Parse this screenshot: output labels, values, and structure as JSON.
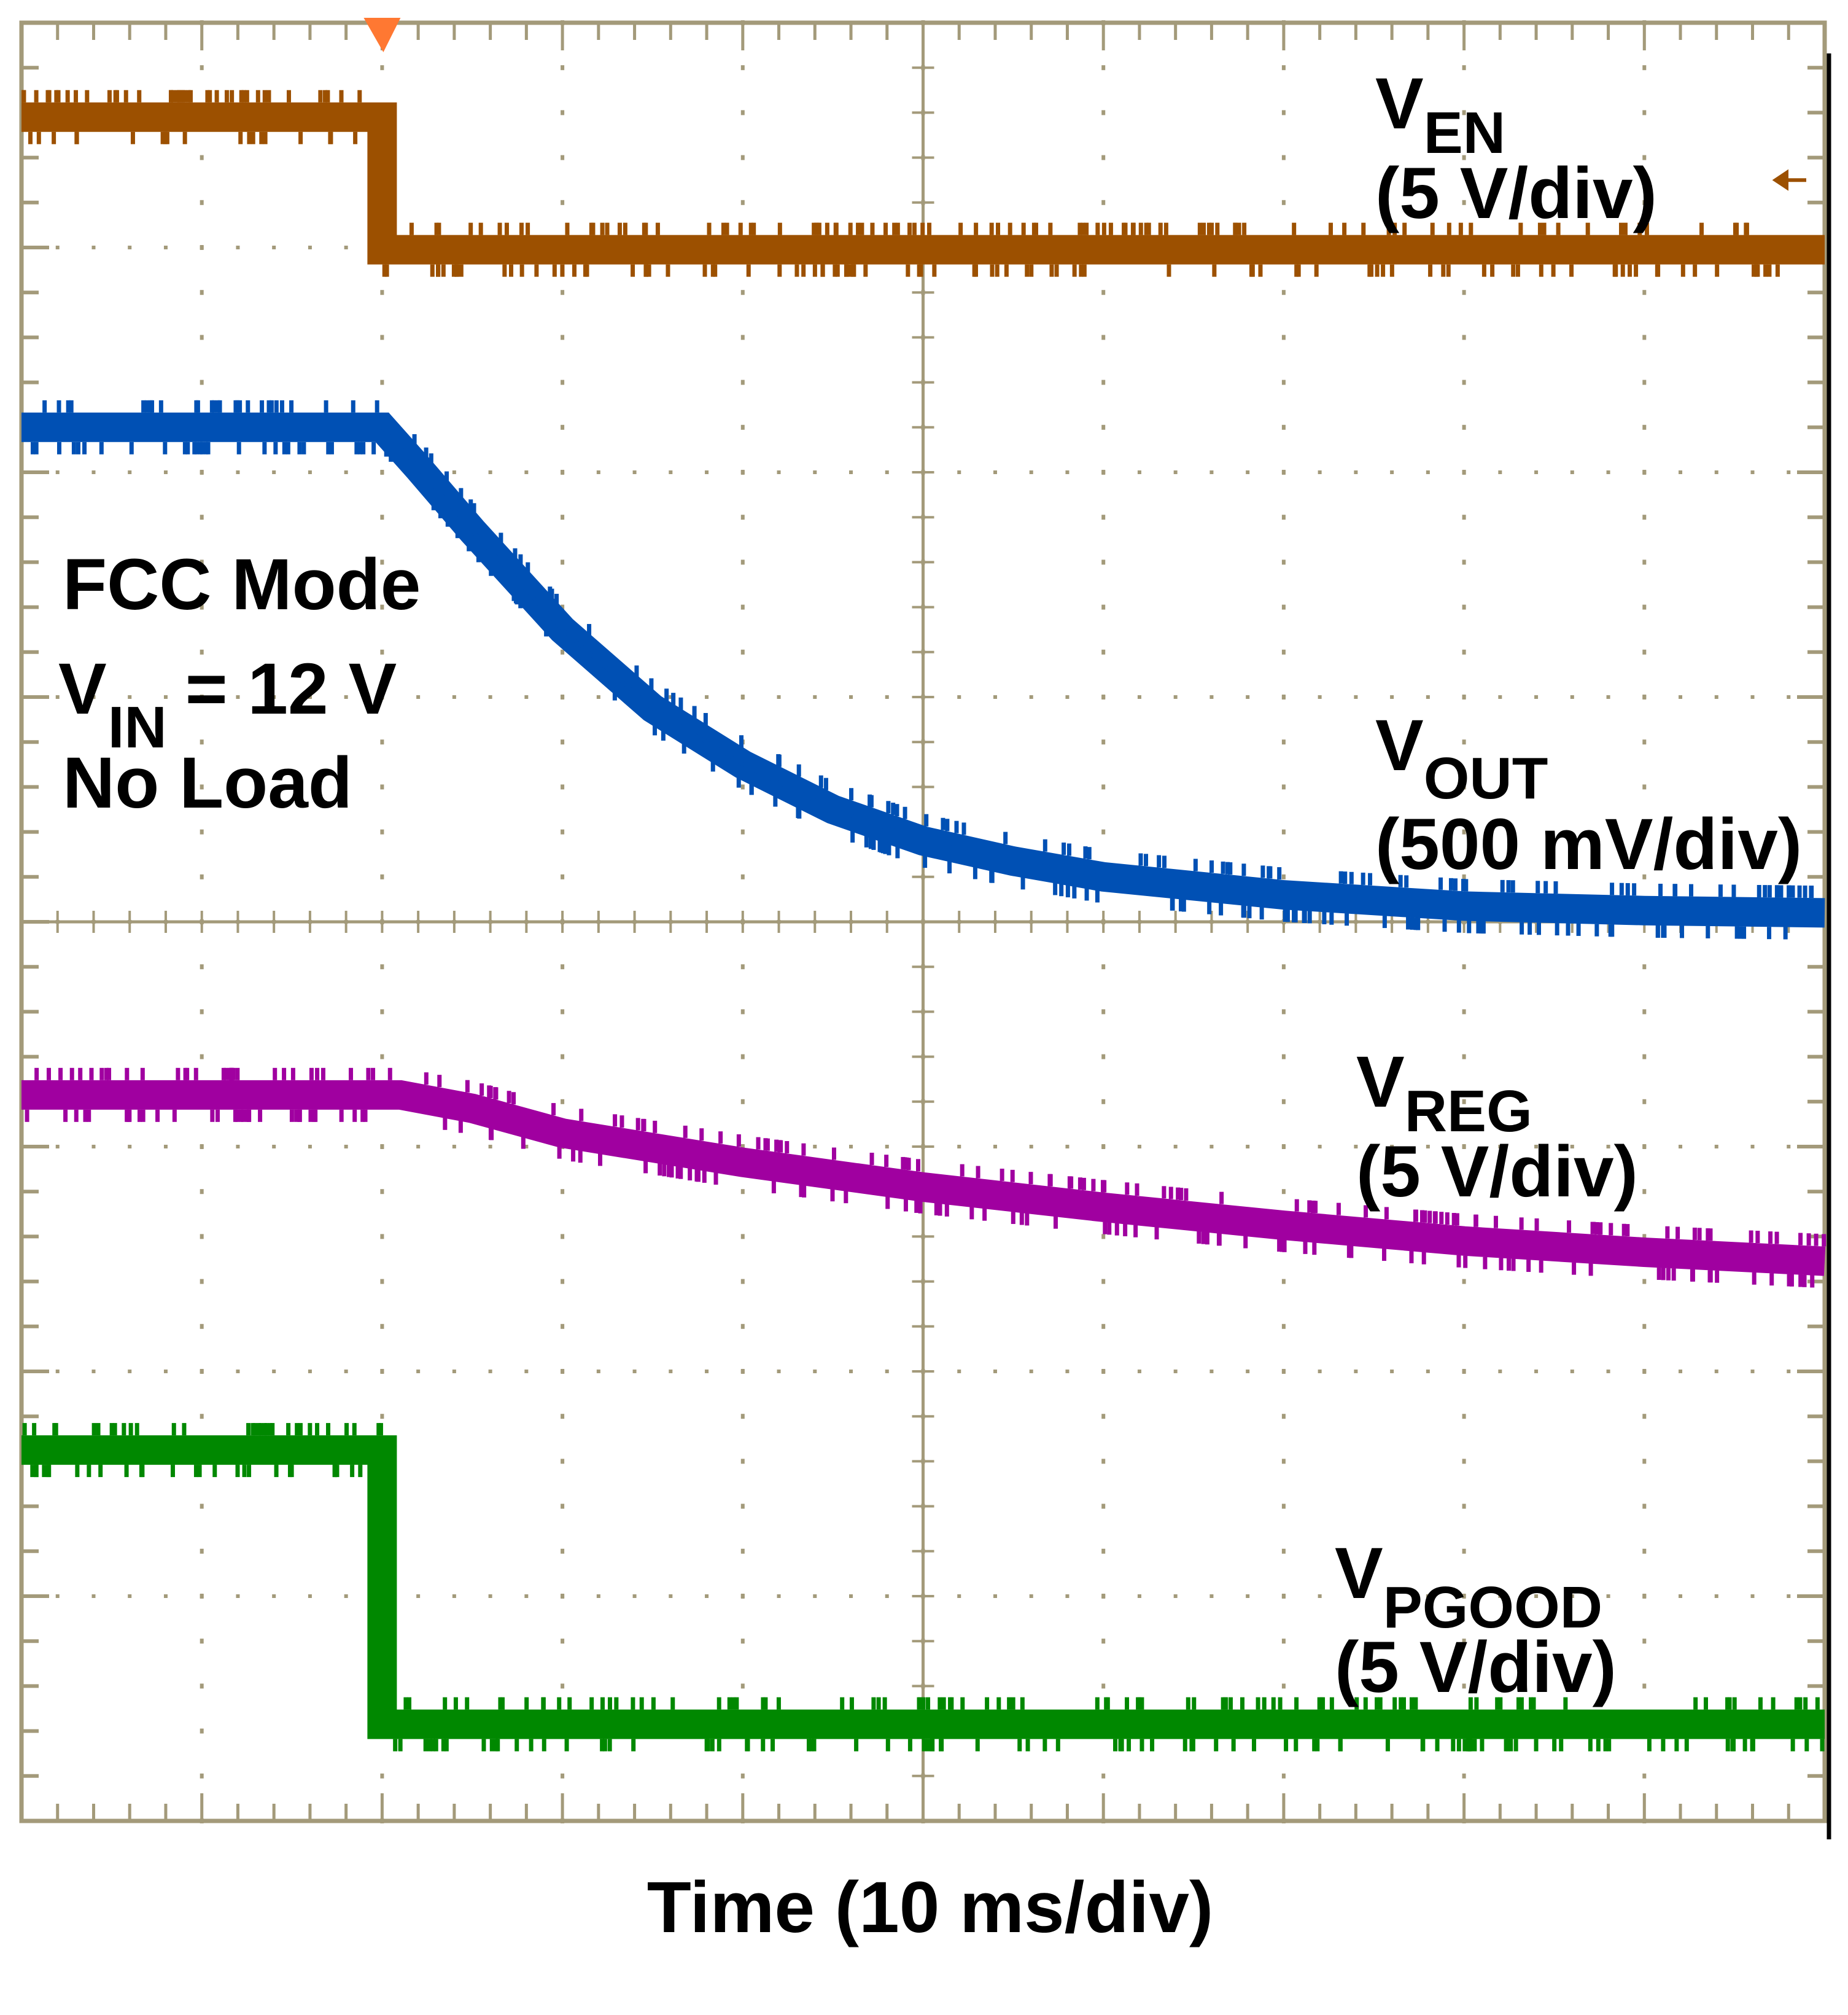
{
  "chart_data": {
    "type": "line",
    "title": "",
    "xlabel": "Time (10 ms/div)",
    "ylabel": "",
    "x_units": "ms",
    "xlim": [
      0,
      100
    ],
    "y_units": "graticule divisions",
    "ylim": [
      0,
      8
    ],
    "grid": true,
    "grid_divisions": {
      "x": 10,
      "y": 8
    },
    "trigger_time": 20,
    "annotations": [
      "FCC Mode",
      "V",
      "IN",
      "= 12 V",
      "No Load"
    ],
    "series": [
      {
        "name": "VEN",
        "label_main": "V",
        "label_sub": "EN",
        "scale": "(5 V/div)",
        "color": "#9c5000",
        "x": [
          0,
          20,
          20,
          100
        ],
        "y": [
          7.58,
          7.58,
          6.99,
          6.99
        ]
      },
      {
        "name": "VOUT",
        "label_main": "V",
        "label_sub": "OUT",
        "scale": "(500 mV/div)",
        "color": "#0050b4",
        "x": [
          0,
          20,
          22,
          25,
          30,
          35,
          40,
          45,
          50,
          55,
          60,
          70,
          80,
          90,
          100
        ],
        "y": [
          6.2,
          6.2,
          6.02,
          5.74,
          5.3,
          4.95,
          4.7,
          4.5,
          4.36,
          4.27,
          4.2,
          4.12,
          4.07,
          4.05,
          4.04
        ]
      },
      {
        "name": "VREG",
        "label_main": "V",
        "label_sub": "REG",
        "scale": "(5 V/div)",
        "color": "#a000a0",
        "x": [
          0,
          21,
          25,
          30,
          40,
          50,
          60,
          70,
          80,
          90,
          100
        ],
        "y": [
          3.23,
          3.23,
          3.17,
          3.06,
          2.93,
          2.82,
          2.73,
          2.65,
          2.58,
          2.53,
          2.49
        ]
      },
      {
        "name": "VPGOOD",
        "label_main": "V",
        "label_sub": "PGOOD",
        "scale": "(5 V/div)",
        "color": "#008800",
        "x": [
          0,
          20,
          20,
          100
        ],
        "y": [
          1.65,
          1.65,
          0.43,
          0.43
        ]
      }
    ]
  },
  "colors": {
    "grid": "#a39a7a",
    "trigger": "#ff7832"
  }
}
